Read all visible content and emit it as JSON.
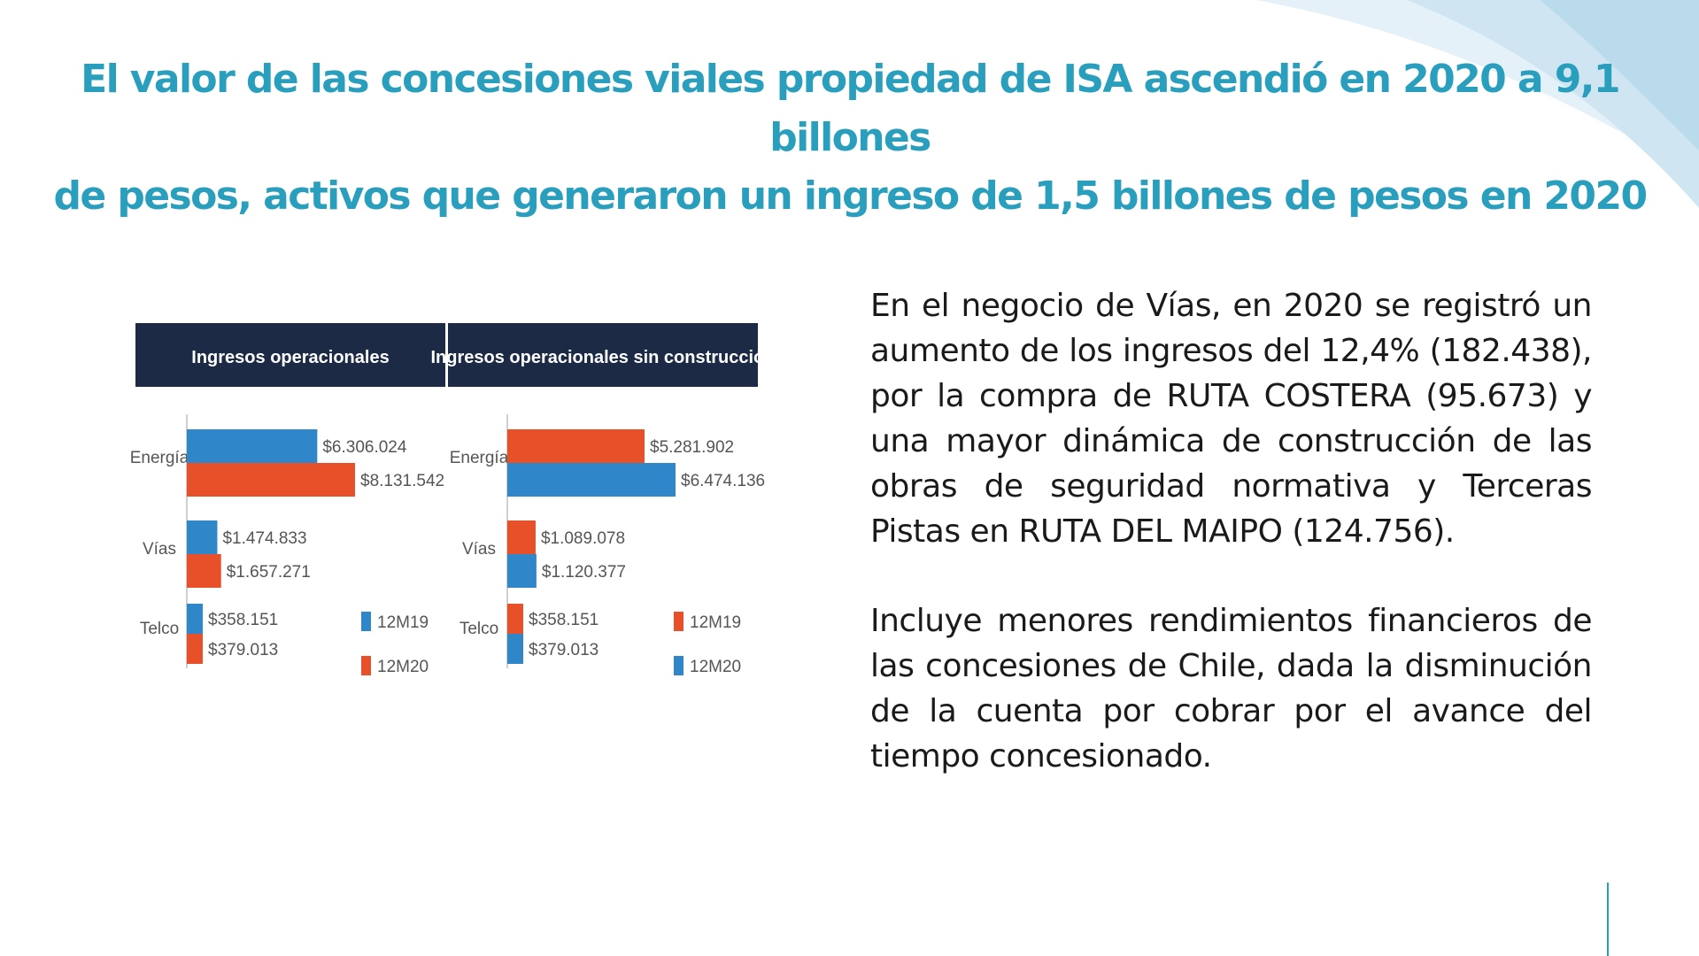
{
  "slide": {
    "title_lines": [
      "El valor de las concesiones viales propiedad de ISA ascendió en 2020 a 9,1 billones",
      "de pesos, activos que generaron un ingreso de 1,5 billones de pesos en 2020"
    ],
    "paragraphs": [
      "En el negocio de Vías, en 2020 se registró un aumento de los ingresos del 12,4% (182.438), por la compra de RUTA COSTERA (95.673) y una mayor dinámica de construcción de las obras de seguridad normativa y Terceras Pistas en RUTA DEL MAIPO (124.756).",
      "Incluye menores rendimientos financieros de las concesiones de Chile, dada la disminución de la cuenta por cobrar por el avance del tiempo concesionado."
    ]
  },
  "colors": {
    "title": "#2a9fbd",
    "header_bg": "#1c2a45",
    "blue": "#2f86c8",
    "red": "#e8502a"
  },
  "chart_data": [
    {
      "type": "bar",
      "orientation": "horizontal",
      "title": "Ingresos operacionales",
      "categories": [
        "Energía",
        "Vías",
        "Telco"
      ],
      "series": [
        {
          "name": "12M19",
          "color": "#2f86c8",
          "values": [
            6306024,
            1474833,
            358151
          ],
          "labels": [
            "$6.306.024",
            "$1.474.833",
            "$358.151"
          ]
        },
        {
          "name": "12M20",
          "color": "#e8502a",
          "values": [
            8131542,
            1657271,
            379013
          ],
          "labels": [
            "$8.131.542",
            "$1.657.271",
            "$379.013"
          ]
        }
      ],
      "legend": [
        {
          "name": "12M19",
          "color": "#2f86c8"
        },
        {
          "name": "12M20",
          "color": "#e8502a"
        }
      ]
    },
    {
      "type": "bar",
      "orientation": "horizontal",
      "title": "Ingresos operacionales sin construcción",
      "categories": [
        "Energía",
        "Vías",
        "Telco"
      ],
      "series": [
        {
          "name": "12M19",
          "color": "#e8502a",
          "values": [
            5281902,
            1089078,
            358151
          ],
          "labels": [
            "$5.281.902",
            "$1.089.078",
            "$358.151"
          ]
        },
        {
          "name": "12M20",
          "color": "#2f86c8",
          "values": [
            6474136,
            1120377,
            379013
          ],
          "labels": [
            "$6.474.136",
            "$1.120.377",
            "$379.013"
          ]
        }
      ],
      "legend": [
        {
          "name": "12M19",
          "color": "#e8502a"
        },
        {
          "name": "12M20",
          "color": "#2f86c8"
        }
      ]
    }
  ]
}
